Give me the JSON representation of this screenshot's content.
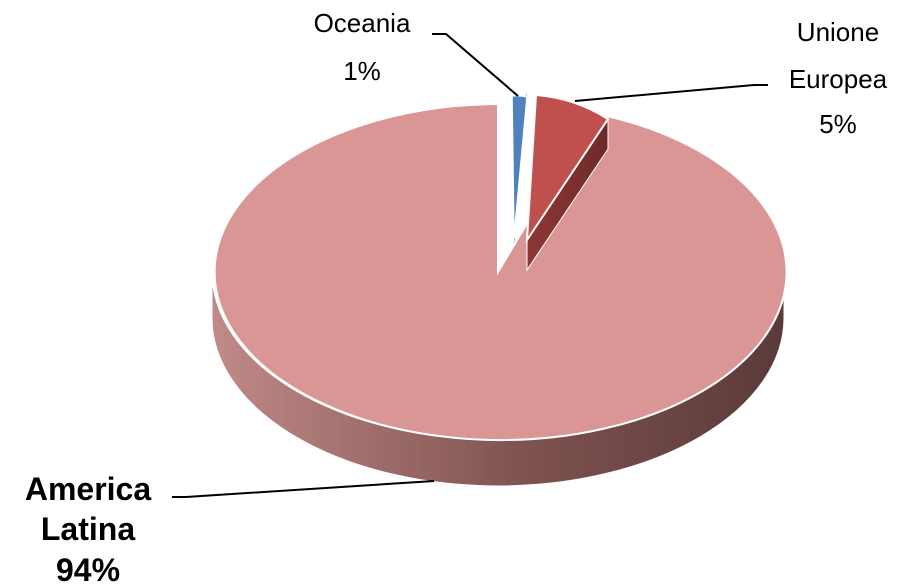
{
  "chart_data": {
    "type": "pie",
    "title": "",
    "legend": "none",
    "categories": [
      "Oceania",
      "Unione Europea",
      "America Latina"
    ],
    "values": [
      1,
      5,
      94
    ],
    "labels": [
      {
        "name_lines": [
          "Oceania"
        ],
        "percent": "1%"
      },
      {
        "name_lines": [
          "Unione",
          "Europea"
        ],
        "percent": "5%"
      },
      {
        "name_lines": [
          "America",
          "Latina"
        ],
        "percent": "94%"
      }
    ],
    "colors": [
      "#4F81BD",
      "#C0504D",
      "#D99694"
    ],
    "exploded": [
      true,
      true,
      false
    ],
    "three_d": true
  }
}
